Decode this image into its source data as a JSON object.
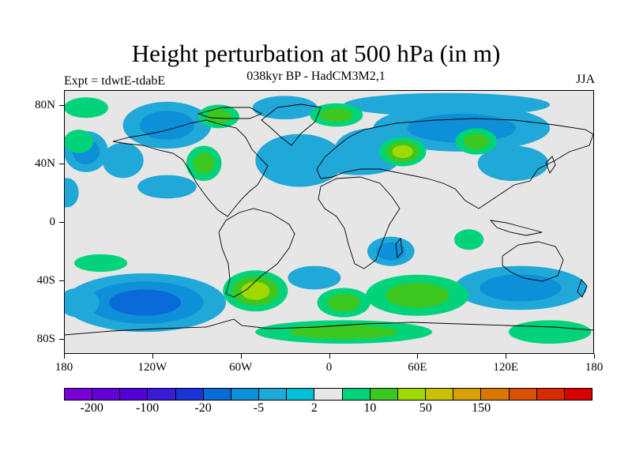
{
  "title": "Height perturbation at 500 hPa (in m)",
  "subtitle": "038kyr BP - HadCM3M2,1",
  "left_label": "Expt = tdwtE-tdabE",
  "season_label": "JJA",
  "map": {
    "type": "filled-contour world map",
    "projection": "cylindrical equidistant",
    "lon_range": [
      -180,
      180
    ],
    "lat_range": [
      -90,
      90
    ],
    "background_color": "#e6e6e6",
    "lat_ticks": [
      {
        "lat": 80,
        "label": "80N"
      },
      {
        "lat": 40,
        "label": "40N"
      },
      {
        "lat": 0,
        "label": "0"
      },
      {
        "lat": -40,
        "label": "40S"
      },
      {
        "lat": -80,
        "label": "80S"
      }
    ],
    "lon_ticks": [
      {
        "lon": -180,
        "label": "180"
      },
      {
        "lon": -120,
        "label": "120W"
      },
      {
        "lon": -60,
        "label": "60W"
      },
      {
        "lon": 0,
        "label": "0"
      },
      {
        "lon": 60,
        "label": "60E"
      },
      {
        "lon": 120,
        "label": "120E"
      },
      {
        "lon": 180,
        "label": "180"
      }
    ],
    "regions": [
      {
        "name": "north-atlantic-negative",
        "lon": -20,
        "lat": 42,
        "rx": 30,
        "ry": 18,
        "levels": [
          "#20a8d8"
        ]
      },
      {
        "name": "greenland-negative",
        "lon": -30,
        "lat": 78,
        "rx": 22,
        "ry": 8,
        "levels": [
          "#20a8d8"
        ]
      },
      {
        "name": "arctic-canada-negative",
        "lon": -110,
        "lat": 66,
        "rx": 30,
        "ry": 16,
        "levels": [
          "#20a8d8",
          "#0d90d8"
        ]
      },
      {
        "name": "arctic-negative",
        "lon": 80,
        "lat": 80,
        "rx": 70,
        "ry": 8,
        "levels": [
          "#20a8d8"
        ]
      },
      {
        "name": "siberia-negative",
        "lon": 90,
        "lat": 64,
        "rx": 60,
        "ry": 16,
        "levels": [
          "#20a8d8",
          "#0d90d8"
        ]
      },
      {
        "name": "east-europe-negative",
        "lon": 30,
        "lat": 50,
        "rx": 26,
        "ry": 14,
        "levels": [
          "#20a8d8"
        ]
      },
      {
        "name": "mediterranean-negative",
        "lon": 20,
        "lat": 40,
        "rx": 26,
        "ry": 8,
        "levels": [
          "#20a8d8"
        ]
      },
      {
        "name": "east-asia-negative",
        "lon": 125,
        "lat": 40,
        "rx": 24,
        "ry": 12,
        "levels": [
          "#20a8d8"
        ]
      },
      {
        "name": "north-pacific-negative",
        "lon": -165,
        "lat": 48,
        "rx": 15,
        "ry": 14,
        "levels": [
          "#20a8d8",
          "#0d90d8"
        ]
      },
      {
        "name": "north-pacific-east-negative",
        "lon": -140,
        "lat": 42,
        "rx": 14,
        "ry": 12,
        "levels": [
          "#20a8d8"
        ]
      },
      {
        "name": "central-america-negative",
        "lon": -110,
        "lat": 24,
        "rx": 20,
        "ry": 8,
        "levels": [
          "#20a8d8"
        ]
      },
      {
        "name": "west-pacific-negative",
        "lon": -178,
        "lat": 20,
        "rx": 8,
        "ry": 10,
        "levels": [
          "#20a8d8"
        ]
      },
      {
        "name": "east-africa-negative",
        "lon": 42,
        "lat": -20,
        "rx": 16,
        "ry": 10,
        "levels": [
          "#20a8d8",
          "#0d90d8"
        ]
      },
      {
        "name": "south-pacific-negative",
        "lon": -125,
        "lat": -55,
        "rx": 55,
        "ry": 20,
        "levels": [
          "#20a8d8",
          "#0d90d8",
          "#0a6ad8"
        ]
      },
      {
        "name": "south-indian-negative",
        "lon": 130,
        "lat": -45,
        "rx": 45,
        "ry": 15,
        "levels": [
          "#20a8d8",
          "#0d90d8"
        ]
      },
      {
        "name": "southwest-pacific-negative",
        "lon": -170,
        "lat": -55,
        "rx": 14,
        "ry": 10,
        "levels": [
          "#20a8d8"
        ]
      },
      {
        "name": "south-atlantic-negative",
        "lon": -10,
        "lat": -38,
        "rx": 18,
        "ry": 8,
        "levels": [
          "#20a8d8"
        ]
      },
      {
        "name": "canada-positive",
        "lon": -75,
        "lat": 72,
        "rx": 14,
        "ry": 8,
        "levels": [
          "#00d37a",
          "#3cc820"
        ]
      },
      {
        "name": "west-canada-positive",
        "lon": -165,
        "lat": 78,
        "rx": 15,
        "ry": 7,
        "levels": [
          "#00d37a"
        ]
      },
      {
        "name": "north-america-positive",
        "lon": -85,
        "lat": 40,
        "rx": 12,
        "ry": 12,
        "levels": [
          "#00d37a",
          "#3cc820"
        ]
      },
      {
        "name": "arctic-russia-positive",
        "lon": 5,
        "lat": 73,
        "rx": 18,
        "ry": 8,
        "levels": [
          "#00d37a",
          "#3cc820"
        ]
      },
      {
        "name": "central-asia-positive",
        "lon": 50,
        "lat": 48,
        "rx": 16,
        "ry": 10,
        "levels": [
          "#00d37a",
          "#3cc820",
          "#a0d800"
        ]
      },
      {
        "name": "mongolia-positive",
        "lon": 100,
        "lat": 55,
        "rx": 14,
        "ry": 9,
        "levels": [
          "#00d37a",
          "#3cc820"
        ]
      },
      {
        "name": "pacific-northeast-positive",
        "lon": -170,
        "lat": 55,
        "rx": 10,
        "ry": 8,
        "levels": [
          "#00d37a"
        ]
      },
      {
        "name": "south-america-positive",
        "lon": -50,
        "lat": -47,
        "rx": 22,
        "ry": 14,
        "levels": [
          "#00d37a",
          "#3cc820",
          "#a0d800"
        ]
      },
      {
        "name": "south-pacific-positive",
        "lon": -155,
        "lat": -28,
        "rx": 18,
        "ry": 6,
        "levels": [
          "#00d37a"
        ]
      },
      {
        "name": "south-atlantic-east-positive",
        "lon": 10,
        "lat": -55,
        "rx": 18,
        "ry": 10,
        "levels": [
          "#00d37a",
          "#3cc820"
        ]
      },
      {
        "name": "southern-ocean-positive",
        "lon": 60,
        "lat": -50,
        "rx": 35,
        "ry": 14,
        "levels": [
          "#00d37a",
          "#3cc820"
        ]
      },
      {
        "name": "antarctica-positive",
        "lon": 10,
        "lat": -75,
        "rx": 60,
        "ry": 8,
        "levels": [
          "#00d37a",
          "#3cc820"
        ]
      },
      {
        "name": "antarctic-east-positive",
        "lon": 150,
        "lat": -75,
        "rx": 28,
        "ry": 8,
        "levels": [
          "#00d37a"
        ]
      },
      {
        "name": "indian-positive",
        "lon": 95,
        "lat": -12,
        "rx": 10,
        "ry": 7,
        "levels": [
          "#00d37a"
        ]
      }
    ]
  },
  "colorbar": {
    "colors": [
      "#7a00d8",
      "#6400d8",
      "#5300d8",
      "#3a1ad8",
      "#1a34d8",
      "#0a6ad8",
      "#0d90d8",
      "#20a8d8",
      "#00bfd8",
      "#e6e6e6",
      "#00d37a",
      "#3cc820",
      "#a0d800",
      "#c8c000",
      "#d8a000",
      "#d87800",
      "#d85000",
      "#d82c00",
      "#d80000"
    ],
    "labels": [
      {
        "text": "-200",
        "boundary": 1
      },
      {
        "text": "-100",
        "boundary": 3
      },
      {
        "text": "-20",
        "boundary": 5
      },
      {
        "text": "-5",
        "boundary": 7
      },
      {
        "text": "2",
        "boundary": 9
      },
      {
        "text": "10",
        "boundary": 11
      },
      {
        "text": "50",
        "boundary": 13
      },
      {
        "text": "150",
        "boundary": 15
      }
    ]
  }
}
